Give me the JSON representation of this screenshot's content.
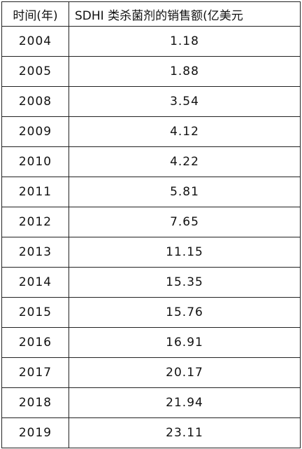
{
  "table": {
    "header": [
      "时间(年)",
      "SDHI 类杀菌剂的销售额(亿美元"
    ],
    "rows": [
      [
        2004,
        1.18
      ],
      [
        2005,
        1.88
      ],
      [
        2008,
        3.54
      ],
      [
        2009,
        4.12
      ],
      [
        2010,
        4.22
      ],
      [
        2011,
        5.81
      ],
      [
        2012,
        7.65
      ],
      [
        2013,
        11.15
      ],
      [
        2014,
        15.35
      ],
      [
        2015,
        15.76
      ],
      [
        2016,
        16.91
      ],
      [
        2017,
        20.17
      ],
      [
        2018,
        21.94
      ],
      [
        2019,
        23.11
      ]
    ]
  }
}
